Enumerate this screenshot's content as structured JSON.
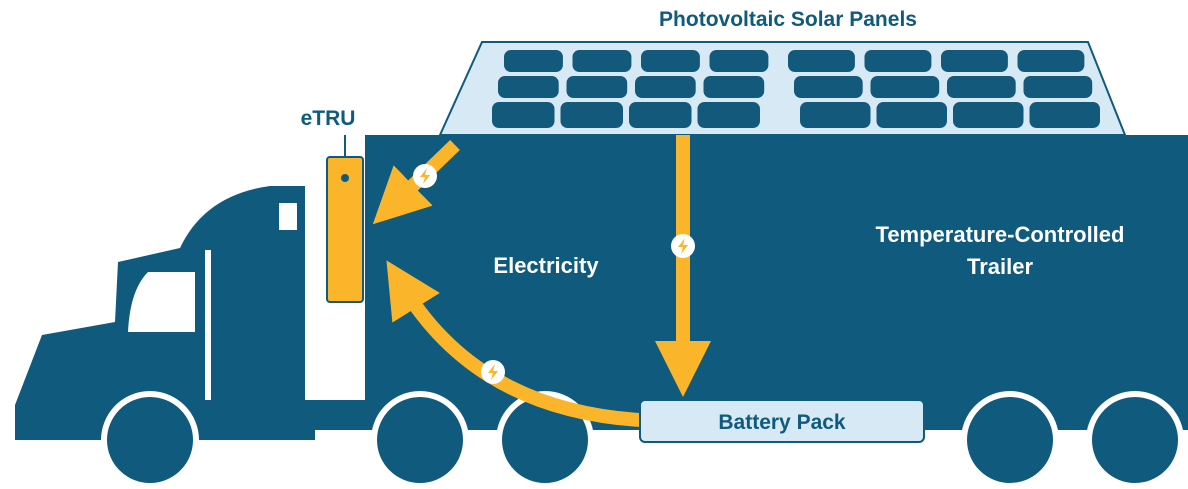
{
  "labels": {
    "solar_panels": "Photovoltaic Solar Panels",
    "etru": "eTRU",
    "electricity": "Electricity",
    "trailer": [
      "Temperature-Controlled",
      "Trailer"
    ],
    "battery": "Battery Pack"
  }
}
